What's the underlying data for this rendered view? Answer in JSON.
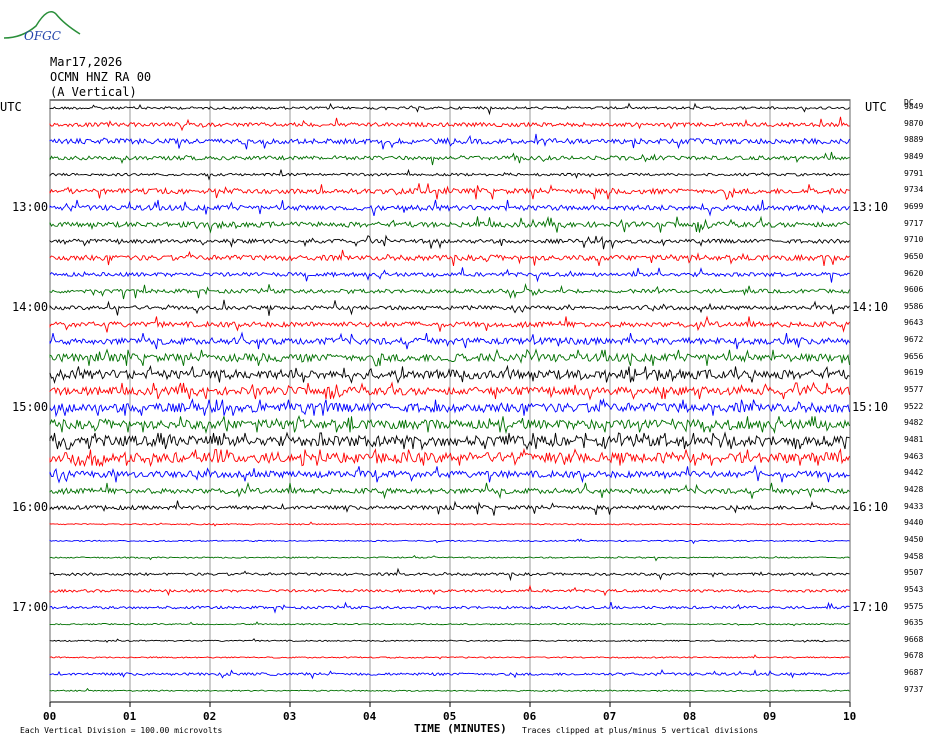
{
  "logo": {
    "text": "OFGC"
  },
  "header": {
    "date": "Mar17,2026",
    "station": "OCMN HNZ RA 00",
    "component": "(A Vertical)",
    "utc_left": "UTC",
    "utc_right": "UTC",
    "dc_label": "DC"
  },
  "footer": {
    "scale_note": "Each Vertical Division =  100.00 microvolts",
    "xlabel": "TIME (MINUTES)",
    "clip_note": "Traces clipped at plus/minus 5 vertical divisions"
  },
  "chart_data": {
    "type": "line",
    "title": "",
    "xlabel": "TIME (MINUTES)",
    "xlim": [
      0,
      10
    ],
    "x_ticks": [
      "00",
      "01",
      "02",
      "03",
      "04",
      "05",
      "06",
      "07",
      "08",
      "09",
      "10"
    ],
    "trace_colors": [
      "#000000",
      "#ff0000",
      "#0000ff",
      "#007000"
    ],
    "left_time_labels": [
      {
        "trace": 6,
        "label": "13:00"
      },
      {
        "trace": 12,
        "label": "14:00"
      },
      {
        "trace": 18,
        "label": "15:00"
      },
      {
        "trace": 24,
        "label": "16:00"
      },
      {
        "trace": 30,
        "label": "17:00"
      }
    ],
    "right_time_labels": [
      {
        "trace": 6,
        "label": "13:10"
      },
      {
        "trace": 12,
        "label": "14:10"
      },
      {
        "trace": 18,
        "label": "15:10"
      },
      {
        "trace": 24,
        "label": "16:10"
      },
      {
        "trace": 30,
        "label": "17:10"
      }
    ],
    "dc_offsets": [
      "9849",
      "9870",
      "9889",
      "9849",
      "9791",
      "9734",
      "9699",
      "9717",
      "9710",
      "9650",
      "9620",
      "9606",
      "9586",
      "9643",
      "9672",
      "9656",
      "9619",
      "9577",
      "9522",
      "9482",
      "9481",
      "9463",
      "9442",
      "9428",
      "9433",
      "9440",
      "9450",
      "9458",
      "9507",
      "9543",
      "9575",
      "9635",
      "9668",
      "9678",
      "9687",
      "9737"
    ],
    "activity": [
      2,
      3,
      4,
      3,
      2,
      4,
      4,
      4,
      3,
      4,
      3,
      3,
      3,
      4,
      5,
      6,
      7,
      6,
      7,
      7,
      8,
      8,
      5,
      4,
      3,
      1,
      1,
      1,
      2,
      2,
      2,
      1,
      1,
      1,
      2,
      1
    ]
  }
}
